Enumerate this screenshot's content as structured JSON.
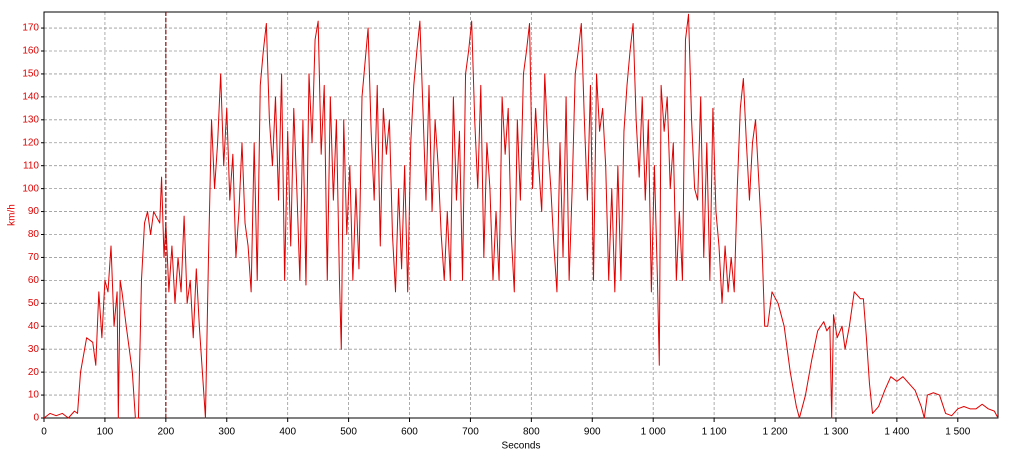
{
  "chart_data": {
    "type": "line",
    "x_label": "Seconds",
    "y_label": "km/h",
    "color": "#e00000",
    "grid": true,
    "cursor_x": 200,
    "cursor_color": "#8b1010",
    "xlim": [
      0,
      1566
    ],
    "ylim": [
      0,
      177
    ],
    "xticks": [
      0,
      100,
      200,
      300,
      400,
      500,
      600,
      700,
      800,
      900,
      {
        "value": 1000,
        "label": "1 000"
      },
      {
        "value": 1100,
        "label": "1 100"
      },
      {
        "value": 1200,
        "label": "1 200"
      },
      {
        "value": 1300,
        "label": "1 300"
      },
      {
        "value": 1400,
        "label": "1 400"
      },
      {
        "value": 1500,
        "label": "1 500"
      }
    ],
    "yticks": [
      0,
      10,
      20,
      30,
      40,
      50,
      60,
      70,
      80,
      90,
      100,
      110,
      120,
      130,
      140,
      150,
      160,
      170
    ],
    "x": [
      0,
      10,
      20,
      30,
      40,
      50,
      55,
      60,
      70,
      80,
      85,
      90,
      95,
      100,
      105,
      110,
      115,
      120,
      122,
      125,
      128,
      135,
      145,
      150,
      155,
      160,
      165,
      170,
      175,
      180,
      190,
      193,
      197,
      200,
      205,
      210,
      215,
      220,
      225,
      230,
      235,
      240,
      245,
      250,
      255,
      260,
      265,
      270,
      275,
      280,
      285,
      290,
      295,
      300,
      305,
      310,
      315,
      320,
      325,
      330,
      335,
      340,
      345,
      350,
      355,
      360,
      365,
      370,
      375,
      380,
      385,
      390,
      395,
      400,
      405,
      410,
      415,
      420,
      425,
      430,
      435,
      440,
      445,
      450,
      455,
      460,
      465,
      470,
      475,
      480,
      485,
      488,
      492,
      497,
      502,
      507,
      512,
      517,
      522,
      527,
      532,
      537,
      542,
      547,
      552,
      557,
      562,
      567,
      572,
      577,
      582,
      587,
      592,
      597,
      602,
      607,
      612,
      617,
      622,
      627,
      632,
      637,
      642,
      647,
      652,
      657,
      662,
      667,
      672,
      677,
      682,
      687,
      692,
      697,
      702,
      707,
      712,
      717,
      722,
      727,
      732,
      737,
      742,
      747,
      752,
      757,
      762,
      767,
      772,
      777,
      782,
      787,
      792,
      797,
      802,
      807,
      812,
      817,
      822,
      827,
      832,
      837,
      842,
      847,
      852,
      857,
      862,
      867,
      872,
      877,
      882,
      887,
      892,
      897,
      902,
      907,
      912,
      917,
      922,
      927,
      932,
      937,
      942,
      947,
      952,
      957,
      962,
      967,
      972,
      977,
      982,
      987,
      992,
      997,
      1002,
      1007,
      1010,
      1013,
      1018,
      1023,
      1028,
      1033,
      1038,
      1043,
      1048,
      1053,
      1058,
      1063,
      1068,
      1073,
      1078,
      1083,
      1088,
      1093,
      1098,
      1103,
      1108,
      1113,
      1118,
      1123,
      1128,
      1133,
      1138,
      1143,
      1148,
      1153,
      1158,
      1163,
      1168,
      1173,
      1178,
      1183,
      1188,
      1195,
      1205,
      1215,
      1225,
      1235,
      1240,
      1250,
      1260,
      1270,
      1280,
      1285,
      1290,
      1293,
      1296,
      1302,
      1310,
      1315,
      1322,
      1330,
      1340,
      1345,
      1350,
      1355,
      1360,
      1370,
      1380,
      1390,
      1400,
      1410,
      1420,
      1430,
      1440,
      1445,
      1450,
      1460,
      1470,
      1480,
      1490,
      1500,
      1510,
      1520,
      1530,
      1540,
      1550,
      1560,
      1566
    ],
    "values": [
      0,
      2,
      1,
      2,
      0,
      3,
      2,
      20,
      35,
      33,
      23,
      55,
      35,
      60,
      55,
      75,
      40,
      55,
      0,
      60,
      55,
      40,
      20,
      0,
      0,
      60,
      85,
      90,
      80,
      90,
      85,
      105,
      70,
      85,
      55,
      75,
      50,
      70,
      55,
      88,
      50,
      60,
      35,
      65,
      40,
      20,
      0,
      70,
      130,
      100,
      120,
      150,
      110,
      135,
      95,
      115,
      70,
      90,
      120,
      85,
      75,
      55,
      120,
      60,
      145,
      160,
      172,
      130,
      110,
      140,
      95,
      150,
      60,
      125,
      75,
      135,
      100,
      60,
      130,
      58,
      150,
      120,
      165,
      173,
      115,
      145,
      60,
      140,
      95,
      130,
      60,
      30,
      130,
      80,
      110,
      60,
      100,
      65,
      140,
      155,
      170,
      125,
      95,
      145,
      75,
      135,
      115,
      130,
      80,
      55,
      100,
      65,
      110,
      55,
      120,
      145,
      160,
      173,
      135,
      95,
      145,
      90,
      130,
      110,
      80,
      60,
      90,
      60,
      140,
      95,
      125,
      60,
      150,
      160,
      173,
      130,
      100,
      145,
      70,
      120,
      100,
      60,
      90,
      60,
      140,
      115,
      135,
      80,
      55,
      130,
      95,
      150,
      160,
      172,
      100,
      135,
      110,
      90,
      150,
      120,
      100,
      75,
      55,
      120,
      70,
      140,
      60,
      100,
      150,
      160,
      172,
      130,
      95,
      145,
      60,
      150,
      125,
      135,
      110,
      60,
      100,
      55,
      110,
      60,
      125,
      145,
      160,
      172,
      130,
      105,
      140,
      95,
      130,
      55,
      110,
      60,
      23,
      145,
      125,
      140,
      100,
      120,
      60,
      90,
      60,
      165,
      176,
      130,
      100,
      95,
      140,
      70,
      120,
      60,
      135,
      90,
      75,
      50,
      75,
      55,
      70,
      55,
      100,
      135,
      148,
      120,
      95,
      120,
      130,
      105,
      80,
      40,
      40,
      55,
      50,
      40,
      20,
      5,
      0,
      10,
      25,
      38,
      42,
      38,
      40,
      0,
      45,
      35,
      40,
      30,
      40,
      55,
      52,
      52,
      35,
      15,
      2,
      5,
      12,
      18,
      16,
      18,
      15,
      12,
      5,
      0,
      10,
      11,
      10,
      2,
      1,
      4,
      5,
      4,
      4,
      6,
      4,
      3,
      0
    ]
  }
}
